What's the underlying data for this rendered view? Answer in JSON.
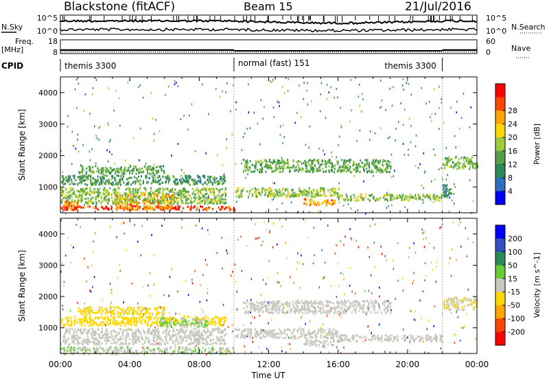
{
  "header": {
    "station": "Blackstone (fitACF)",
    "beam": "Beam 15",
    "date": "21/Jul/2016"
  },
  "noise_panel": {
    "left_label": "N.Sky",
    "left_ticks": [
      "10^5",
      "10^0"
    ],
    "right_label": "N.Search",
    "right_ticks": [
      "10^5",
      "10^0"
    ]
  },
  "freq_panel": {
    "left_label_1": "Freq.",
    "left_label_2": "[MHz]",
    "left_ticks": [
      "18",
      "8"
    ],
    "right_label": "Nave",
    "right_ticks": [
      "60",
      "0"
    ]
  },
  "cpid_panel": {
    "label": "CPID",
    "segments": [
      {
        "start_hour": 0.0,
        "end_hour": 10.0,
        "text": "themis 3300"
      },
      {
        "start_hour": 10.0,
        "end_hour": 22.0,
        "text": "normal (fast) 151"
      },
      {
        "start_hour": 22.0,
        "end_hour": 24.0,
        "text": "themis 3300"
      }
    ]
  },
  "x_axis": {
    "label": "Time UT",
    "ticks": [
      "00:00",
      "04:00",
      "08:00",
      "12:00",
      "16:00",
      "20:00",
      "00:00"
    ]
  },
  "chart_data": [
    {
      "type": "heatmap",
      "ylabel": "Slant Range [km]",
      "xlabel": "Time UT",
      "xlim_hours": [
        0,
        24
      ],
      "ylim_km": [
        180,
        4500
      ],
      "yticks": [
        "1000",
        "2000",
        "3000",
        "4000"
      ],
      "colorbar_label": "Power [dB]",
      "colorbar_ticks": [
        "4",
        "8",
        "12",
        "16",
        "20",
        "24",
        "28"
      ],
      "colormap": [
        "#0000ff",
        "#2f6fbf",
        "#2e8b57",
        "#55a04b",
        "#9ccc3c",
        "#ffd700",
        "#ffa500",
        "#ff4500",
        "#ff0000"
      ],
      "scatter_regions": [
        {
          "t0": 0.0,
          "t1": 10.0,
          "r0": 300,
          "r1": 420,
          "value": 26
        },
        {
          "t0": 0.2,
          "t1": 1.0,
          "r0": 300,
          "r1": 600,
          "value": 24
        },
        {
          "t0": 3.0,
          "t1": 6.5,
          "r0": 300,
          "r1": 800,
          "value": 22
        },
        {
          "t0": 0.0,
          "t1": 9.5,
          "r0": 500,
          "r1": 1000,
          "value": 14
        },
        {
          "t0": 0.0,
          "t1": 9.5,
          "r0": 1100,
          "r1": 1400,
          "value": 10
        },
        {
          "t0": 1.0,
          "t1": 6.0,
          "r0": 1450,
          "r1": 1700,
          "value": 12
        },
        {
          "t0": 10.0,
          "t1": 16.0,
          "r0": 700,
          "r1": 1000,
          "value": 14
        },
        {
          "t0": 14.0,
          "t1": 15.8,
          "r0": 450,
          "r1": 650,
          "value": 22
        },
        {
          "t0": 10.5,
          "t1": 19.0,
          "r0": 1500,
          "r1": 1900,
          "value": 12
        },
        {
          "t0": 16.0,
          "t1": 22.0,
          "r0": 600,
          "r1": 800,
          "value": 14
        },
        {
          "t0": 22.0,
          "t1": 24.0,
          "r0": 1600,
          "r1": 2000,
          "value": 13
        },
        {
          "t0": 22.0,
          "t1": 22.5,
          "r0": 700,
          "r1": 1100,
          "value": 8
        }
      ]
    },
    {
      "type": "heatmap",
      "ylabel": "Slant Range [km]",
      "xlabel": "Time UT",
      "xlim_hours": [
        0,
        24
      ],
      "ylim_km": [
        180,
        4500
      ],
      "yticks": [
        "1000",
        "2000",
        "3000",
        "4000"
      ],
      "colorbar_label": "Velocity [m s^-1]",
      "colorbar_ticks": [
        "200",
        "100",
        "50",
        "15",
        "-15",
        "-50",
        "-100",
        "-200"
      ],
      "colormap": [
        "#0000ff",
        "#3050c0",
        "#2e8b57",
        "#66cc33",
        "#c8c8c0",
        "#ffd700",
        "#ffa500",
        "#ff4500",
        "#ff0000"
      ],
      "scatter_regions": [
        {
          "t0": 0.0,
          "t1": 10.0,
          "r0": 200,
          "r1": 420,
          "value": 20
        },
        {
          "t0": 0.0,
          "t1": 9.5,
          "r0": 500,
          "r1": 1000,
          "value": 0
        },
        {
          "t0": 0.0,
          "t1": 9.5,
          "r0": 1100,
          "r1": 1400,
          "value": -60
        },
        {
          "t0": 1.0,
          "t1": 6.0,
          "r0": 1450,
          "r1": 1700,
          "value": -40
        },
        {
          "t0": 5.5,
          "t1": 8.5,
          "r0": 1050,
          "r1": 1350,
          "value": 30
        },
        {
          "t0": 10.0,
          "t1": 16.0,
          "r0": 700,
          "r1": 1000,
          "value": 0
        },
        {
          "t0": 14.0,
          "t1": 15.8,
          "r0": 450,
          "r1": 650,
          "value": 0
        },
        {
          "t0": 10.5,
          "t1": 19.0,
          "r0": 1500,
          "r1": 1900,
          "value": 0
        },
        {
          "t0": 16.0,
          "t1": 22.0,
          "r0": 600,
          "r1": 800,
          "value": 0
        },
        {
          "t0": 22.0,
          "t1": 24.0,
          "r0": 1600,
          "r1": 2000,
          "value": -20
        }
      ]
    }
  ]
}
